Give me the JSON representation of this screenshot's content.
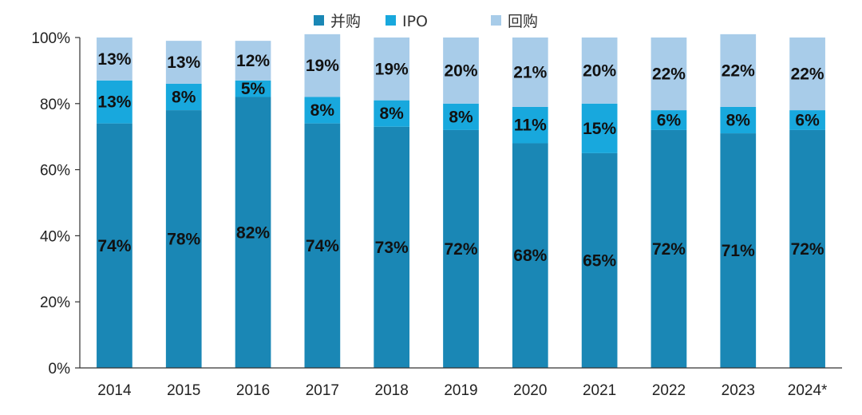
{
  "chart_data": {
    "type": "bar",
    "stacked": true,
    "categories": [
      "2014",
      "2015",
      "2016",
      "2017",
      "2018",
      "2019",
      "2020",
      "2021",
      "2022",
      "2023",
      "2024*"
    ],
    "series": [
      {
        "name": "并购",
        "color": "#1a87b5",
        "values": [
          74,
          78,
          82,
          74,
          73,
          72,
          68,
          65,
          72,
          71,
          72
        ],
        "labels": [
          "74%",
          "78%",
          "82%",
          "74%",
          "73%",
          "72%",
          "68%",
          "65%",
          "72%",
          "71%",
          "72%"
        ]
      },
      {
        "name": "IPO",
        "color": "#18a8dd",
        "values": [
          13,
          8,
          5,
          8,
          8,
          8,
          11,
          15,
          6,
          8,
          6
        ],
        "labels": [
          "13%",
          "8%",
          "5%",
          "8%",
          "8%",
          "8%",
          "11%",
          "15%",
          "6%",
          "8%",
          "6%"
        ]
      },
      {
        "name": "回购",
        "color": "#a8cce9",
        "values": [
          13,
          13,
          12,
          19,
          19,
          20,
          21,
          20,
          22,
          22,
          22
        ],
        "labels": [
          "13%",
          "13%",
          "12%",
          "19%",
          "19%",
          "20%",
          "21%",
          "20%",
          "22%",
          "22%",
          "22%"
        ]
      }
    ],
    "ylim": [
      0,
      100
    ],
    "yticks": [
      "0%",
      "20%",
      "40%",
      "60%",
      "80%",
      "100%"
    ],
    "legend_position": "top-center",
    "grid": false
  }
}
